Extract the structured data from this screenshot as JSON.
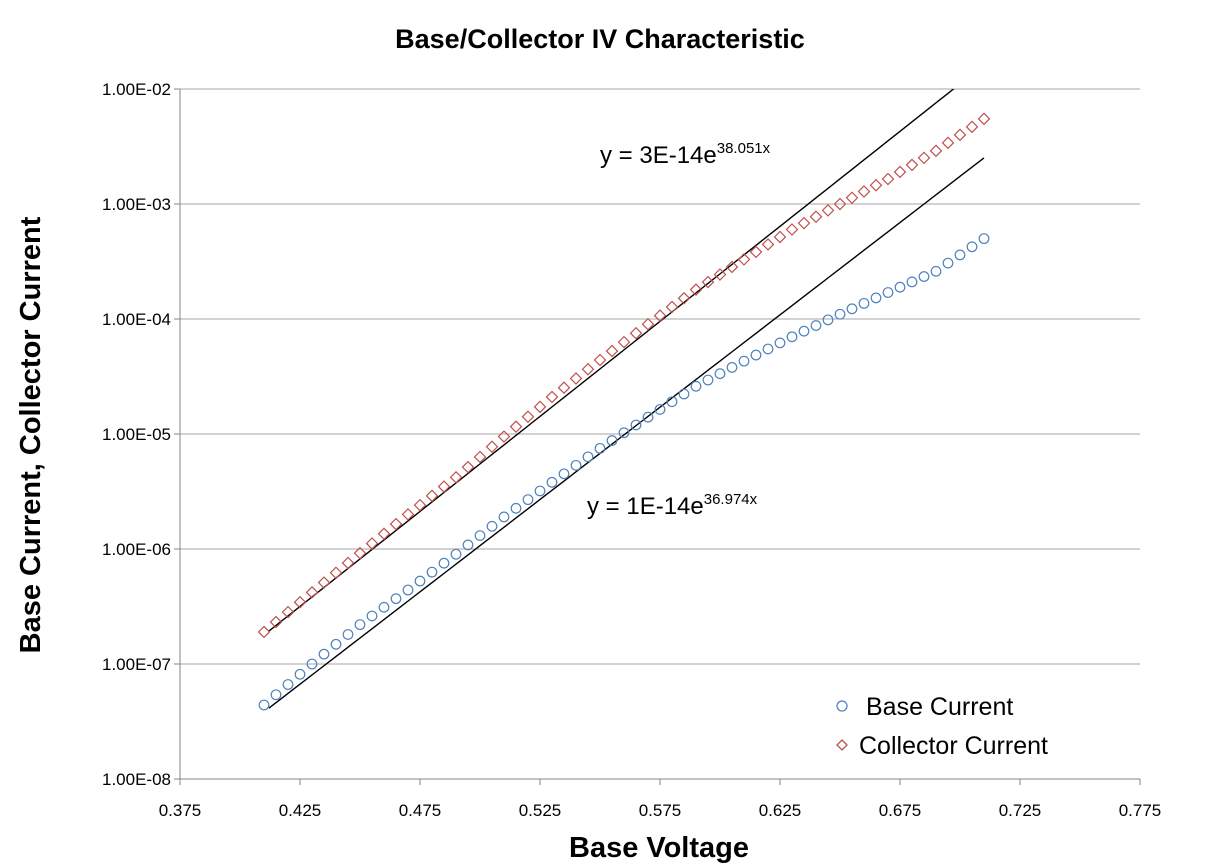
{
  "chart_data": {
    "type": "scatter",
    "title": "Base/Collector IV Characteristic",
    "xlabel": "Base Voltage",
    "ylabel": "Base Current, Collector Current",
    "xlim": [
      0.375,
      0.775
    ],
    "ylim": [
      1e-08,
      0.01
    ],
    "y_scale": "log",
    "grid": "horizontal major gridlines",
    "x_ticks": [
      "0.375",
      "0.425",
      "0.475",
      "0.525",
      "0.575",
      "0.625",
      "0.675",
      "0.725",
      "0.775"
    ],
    "x_tick_values": [
      0.375,
      0.425,
      0.475,
      0.525,
      0.575,
      0.625,
      0.675,
      0.725,
      0.775
    ],
    "y_ticks": [
      "1.00E-02",
      "1.00E-03",
      "1.00E-04",
      "1.00E-05",
      "1.00E-06",
      "1.00E-07",
      "1.00E-08"
    ],
    "y_tick_values": [
      0.01,
      0.001,
      0.0001,
      1e-05,
      1e-06,
      1e-07,
      1e-08
    ],
    "legend_position": "bottom-right",
    "series": [
      {
        "name": "Base Current",
        "marker": "circle",
        "color": "#4f81bd",
        "points": [
          [
            0.41,
            4.4e-08
          ],
          [
            0.43,
            1e-07
          ],
          [
            0.45,
            2.2e-07
          ],
          [
            0.47,
            4.4e-07
          ],
          [
            0.49,
            9e-07
          ],
          [
            0.51,
            1.9e-06
          ],
          [
            0.53,
            3.8e-06
          ],
          [
            0.55,
            7.5e-06
          ],
          [
            0.57,
            1.4e-05
          ],
          [
            0.59,
            2.6e-05
          ],
          [
            0.61,
            4.3e-05
          ],
          [
            0.63,
            7e-05
          ],
          [
            0.65,
            0.00011
          ],
          [
            0.67,
            0.00017
          ],
          [
            0.69,
            0.00026
          ],
          [
            0.71,
            0.0005
          ]
        ]
      },
      {
        "name": "Collector Current",
        "marker": "diamond",
        "color": "#c0504d",
        "points": [
          [
            0.41,
            1.9e-07
          ],
          [
            0.43,
            4.2e-07
          ],
          [
            0.45,
            9.2e-07
          ],
          [
            0.47,
            2e-06
          ],
          [
            0.49,
            4.2e-06
          ],
          [
            0.51,
            9.5e-06
          ],
          [
            0.53,
            2.1e-05
          ],
          [
            0.55,
            4.4e-05
          ],
          [
            0.57,
            9e-05
          ],
          [
            0.59,
            0.00018
          ],
          [
            0.61,
            0.00033
          ],
          [
            0.63,
            0.0006
          ],
          [
            0.65,
            0.001
          ],
          [
            0.67,
            0.00165
          ],
          [
            0.69,
            0.0029
          ],
          [
            0.71,
            0.0055
          ]
        ]
      }
    ],
    "trendlines": [
      {
        "type": "exponential",
        "coefficient": 3e-14,
        "exponent": 38.051,
        "label_base": "y = 3E-14e",
        "label_exp": "38.051x",
        "x_range": [
          0.412,
          0.71
        ]
      },
      {
        "type": "exponential",
        "coefficient": 1e-14,
        "exponent": 36.974,
        "label_base": "y = 1E-14e",
        "label_exp": "36.974x",
        "x_range": [
          0.412,
          0.71
        ]
      }
    ]
  }
}
